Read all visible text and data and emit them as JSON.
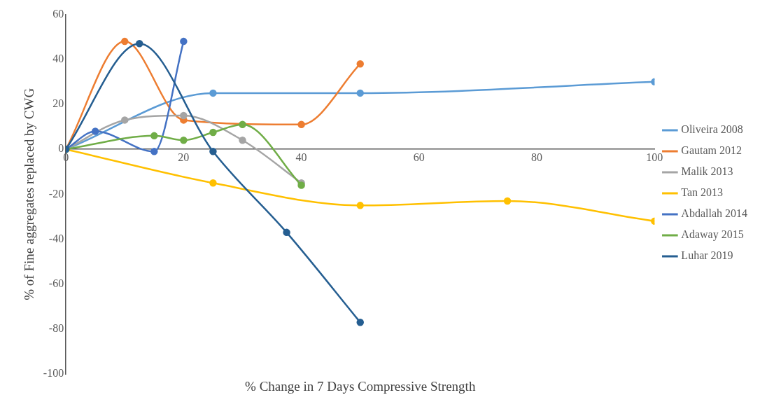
{
  "chart_data": {
    "type": "line",
    "xlabel": "% Change in 7 Days Compressive Strength",
    "ylabel": "% of Fine aggregates replaced by CWG",
    "xlim": [
      0,
      100
    ],
    "xticks": [
      0,
      20,
      40,
      60,
      80,
      100
    ],
    "ylim": [
      -100,
      60
    ],
    "yticks": [
      -100,
      -80,
      -60,
      -40,
      -20,
      0,
      20,
      40,
      60
    ],
    "grid": false,
    "legend": "right",
    "marker": "circle",
    "line_style": "solid",
    "series": [
      {
        "name": "Oliveira 2008",
        "color": "#5b9bd5",
        "x": [
          0,
          25,
          50,
          100
        ],
        "values": [
          0,
          25,
          25,
          30
        ]
      },
      {
        "name": "Gautam 2012",
        "color": "#ed7d31",
        "x": [
          0,
          10,
          20,
          40,
          50
        ],
        "values": [
          0,
          48,
          13,
          11,
          38
        ]
      },
      {
        "name": "Malik 2013",
        "color": "#a5a5a5",
        "x": [
          0,
          10,
          20,
          30,
          40
        ],
        "values": [
          0,
          13,
          15,
          4,
          -15
        ]
      },
      {
        "name": "Tan 2013",
        "color": "#ffc000",
        "x": [
          0,
          25,
          50,
          75,
          100
        ],
        "values": [
          0,
          -15,
          -25,
          -23,
          -32
        ]
      },
      {
        "name": "Abdallah 2014",
        "color": "#4472c4",
        "x": [
          0,
          5,
          15,
          20
        ],
        "values": [
          0,
          8,
          -1,
          48
        ]
      },
      {
        "name": "Adaway 2015",
        "color": "#70ad47",
        "x": [
          0,
          15,
          20,
          25,
          30,
          40
        ],
        "values": [
          0,
          6,
          4,
          7.5,
          11,
          -16
        ]
      },
      {
        "name": "Luhar 2019",
        "color": "#255e91",
        "x": [
          0,
          12.5,
          25,
          37.5,
          50
        ],
        "values": [
          0,
          47,
          -1,
          -37,
          -77
        ]
      }
    ]
  }
}
